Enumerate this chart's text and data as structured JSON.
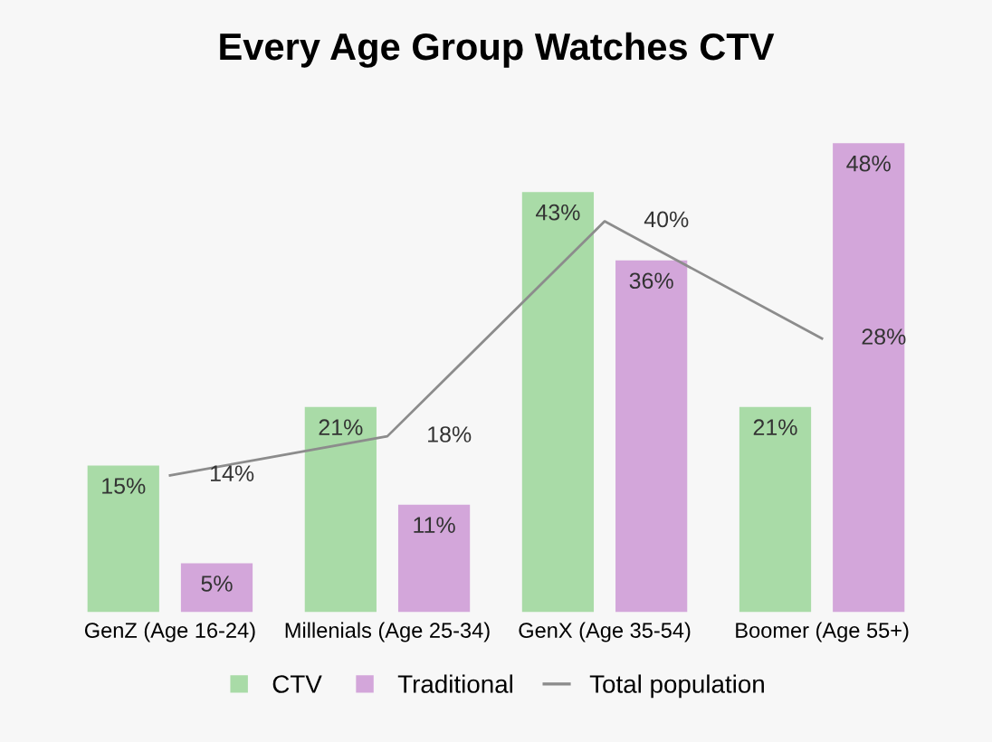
{
  "chart_data": {
    "type": "bar",
    "title": "Every Age Group Watches CTV",
    "categories": [
      "GenZ (Age 16-24)",
      "Millenials (Age 25-34)",
      "GenX (Age 35-54)",
      "Boomer (Age 55+)"
    ],
    "series": [
      {
        "name": "CTV",
        "color": "#a9dba7",
        "values": [
          15,
          21,
          43,
          21
        ],
        "value_labels": [
          "15%",
          "21%",
          "43%",
          "21%"
        ]
      },
      {
        "name": "Traditional",
        "color": "#d3a6da",
        "values": [
          5,
          11,
          36,
          48
        ],
        "value_labels": [
          "5%",
          "11%",
          "36%",
          "48%"
        ]
      },
      {
        "name": "Total population",
        "type": "line",
        "color": "#8c8c8c",
        "values": [
          14,
          18,
          40,
          28
        ],
        "value_labels": [
          "14%",
          "18%",
          "40%",
          "28%"
        ]
      }
    ],
    "legend": "bottom",
    "grid": false
  }
}
